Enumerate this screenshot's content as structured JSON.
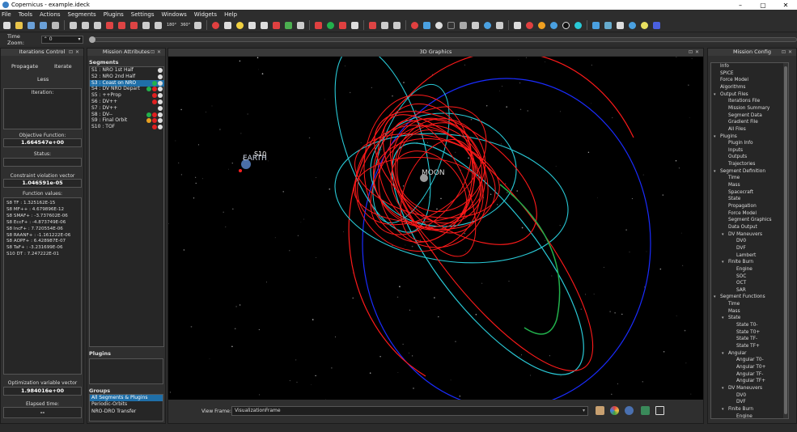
{
  "window": {
    "title": "Copernicus - example.ideck",
    "min": "–",
    "max": "▢",
    "close": "✕"
  },
  "menu": [
    "File",
    "Tools",
    "Actions",
    "Segments",
    "Plugins",
    "Settings",
    "Windows",
    "Widgets",
    "Help"
  ],
  "toolbar": {
    "label_180": "180°",
    "label_360": "360°"
  },
  "time_zoom": {
    "label": "Time Zoom:",
    "value": "0"
  },
  "iterations": {
    "title": "Iterations Control",
    "propagate": "Propagate",
    "iterate": "Iterate",
    "less": "Less",
    "iteration_label": "Iteration:",
    "objective_label": "Objective Function:",
    "objective_value": "1.664547e+00",
    "status_label": "Status:",
    "constraint_label": "Constraint violation vector norm:",
    "constraint_value": "1.046591e-05",
    "function_values_label": "Function values:",
    "function_values": [
      "S8 TF : 1.325162E-15",
      "S8 MF++ : 4.679896E-12",
      "S8 SMAF+ : -3.737602E-06",
      "S8 EccF+ : -4.873749E-06",
      "S8 IncF+ : 7.720554E-06",
      "S8 RAANF+ : -1.161222E-06",
      "S8 AOPF+ : 6.428987E-07",
      "S8 TaF+ : -3.231699E-06",
      "S10 DT : 7.247222E-01"
    ],
    "optvar_label": "Optimization variable vector norm:",
    "optvar_value": "1.984016e+00",
    "elapsed_label": "Elapsed time:",
    "elapsed_value": "--"
  },
  "mission_attributes": {
    "title": "Mission Attributes",
    "segments_label": "Segments",
    "segments": [
      {
        "label": "S1 : NRO 1st Half",
        "icons": [
          "#dddddd"
        ]
      },
      {
        "label": "S2 : NRO 2nd Half",
        "icons": [
          "#dddddd"
        ]
      },
      {
        "label": "S3 : Coast on NRO",
        "icons": [
          "#22b14c",
          "#dddddd"
        ]
      },
      {
        "label": "S4 : DV NRO Depart",
        "icons": [
          "#22b14c",
          "#e02020",
          "#dddddd"
        ]
      },
      {
        "label": "S5 : ++Prop",
        "icons": [
          "#e02020",
          "#dddddd"
        ]
      },
      {
        "label": "S6 : DV++",
        "icons": [
          "#e02020",
          "#dddddd"
        ]
      },
      {
        "label": "S7 : DV++",
        "icons": [
          "#dddddd"
        ]
      },
      {
        "label": "S8 : DV--",
        "icons": [
          "#22b14c",
          "#e02020",
          "#dddddd"
        ]
      },
      {
        "label": "S9 : Final Orbit",
        "icons": [
          "#e8a020",
          "#e02020",
          "#dddddd"
        ]
      },
      {
        "label": "S10 : TOF",
        "icons": [
          "#e02020",
          "#dddddd"
        ]
      }
    ],
    "plugins_label": "Plugins",
    "groups_label": "Groups",
    "groups": [
      "All Segments & Plugins",
      "Periodic-Orbits",
      "NRO-DRO Transfer"
    ]
  },
  "graphics": {
    "title": "3D Graphics",
    "earth_label": "EARTH",
    "moon_label": "MOON",
    "s10_label": "S10",
    "view_frame_label": "View Frame:",
    "view_frame_value": "VisualizationFrame"
  },
  "mission_config": {
    "title": "Mission Config",
    "items": [
      {
        "label": "Info",
        "level": 0,
        "arrow": ""
      },
      {
        "label": "SPICE",
        "level": 0,
        "arrow": ""
      },
      {
        "label": "Force Model",
        "level": 0,
        "arrow": ""
      },
      {
        "label": "Algorithms",
        "level": 0,
        "arrow": ""
      },
      {
        "label": "Output Files",
        "level": 0,
        "arrow": "▾"
      },
      {
        "label": "Iterations File",
        "level": 1,
        "arrow": ""
      },
      {
        "label": "Mission Summary",
        "level": 1,
        "arrow": ""
      },
      {
        "label": "Segment Data",
        "level": 1,
        "arrow": ""
      },
      {
        "label": "Gradient File",
        "level": 1,
        "arrow": ""
      },
      {
        "label": "All Files",
        "level": 1,
        "arrow": ""
      },
      {
        "label": "Plugins",
        "level": 0,
        "arrow": "▾"
      },
      {
        "label": "Plugin Info",
        "level": 1,
        "arrow": ""
      },
      {
        "label": "Inputs",
        "level": 1,
        "arrow": ""
      },
      {
        "label": "Outputs",
        "level": 1,
        "arrow": ""
      },
      {
        "label": "Trajectories",
        "level": 1,
        "arrow": ""
      },
      {
        "label": "Segment Definition",
        "level": 0,
        "arrow": "▾"
      },
      {
        "label": "Time",
        "level": 1,
        "arrow": ""
      },
      {
        "label": "Mass",
        "level": 1,
        "arrow": ""
      },
      {
        "label": "Spacecraft",
        "level": 1,
        "arrow": ""
      },
      {
        "label": "State",
        "level": 1,
        "arrow": ""
      },
      {
        "label": "Propagation",
        "level": 1,
        "arrow": ""
      },
      {
        "label": "Force Model",
        "level": 1,
        "arrow": ""
      },
      {
        "label": "Segment Graphics",
        "level": 1,
        "arrow": ""
      },
      {
        "label": "Data Output",
        "level": 1,
        "arrow": ""
      },
      {
        "label": "DV Maneuvers",
        "level": 1,
        "arrow": "▾"
      },
      {
        "label": "DV0",
        "level": 2,
        "arrow": ""
      },
      {
        "label": "DVF",
        "level": 2,
        "arrow": ""
      },
      {
        "label": "Lambert",
        "level": 2,
        "arrow": ""
      },
      {
        "label": "Finite Burn",
        "level": 1,
        "arrow": "▾"
      },
      {
        "label": "Engine",
        "level": 2,
        "arrow": ""
      },
      {
        "label": "SOC",
        "level": 2,
        "arrow": ""
      },
      {
        "label": "OCT",
        "level": 2,
        "arrow": ""
      },
      {
        "label": "SAR",
        "level": 2,
        "arrow": ""
      },
      {
        "label": "Segment Functions",
        "level": 0,
        "arrow": "▾"
      },
      {
        "label": "Time",
        "level": 1,
        "arrow": ""
      },
      {
        "label": "Mass",
        "level": 1,
        "arrow": ""
      },
      {
        "label": "State",
        "level": 1,
        "arrow": "▾"
      },
      {
        "label": "State T0-",
        "level": 2,
        "arrow": ""
      },
      {
        "label": "State T0+",
        "level": 2,
        "arrow": ""
      },
      {
        "label": "State TF-",
        "level": 2,
        "arrow": ""
      },
      {
        "label": "State TF+",
        "level": 2,
        "arrow": ""
      },
      {
        "label": "Angular",
        "level": 1,
        "arrow": "▾"
      },
      {
        "label": "Angular T0-",
        "level": 2,
        "arrow": ""
      },
      {
        "label": "Angular T0+",
        "level": 2,
        "arrow": ""
      },
      {
        "label": "Angular TF-",
        "level": 2,
        "arrow": ""
      },
      {
        "label": "Angular TF+",
        "level": 2,
        "arrow": ""
      },
      {
        "label": "DV Maneuvers",
        "level": 1,
        "arrow": "▾"
      },
      {
        "label": "DV0",
        "level": 2,
        "arrow": ""
      },
      {
        "label": "DVF",
        "level": 2,
        "arrow": ""
      },
      {
        "label": "Finite Burn",
        "level": 1,
        "arrow": "▾"
      },
      {
        "label": "Engine",
        "level": 2,
        "arrow": ""
      }
    ]
  },
  "colors": {
    "selection": "#1f6fa8",
    "orbit_red": "#ff1a1a",
    "orbit_cyan": "#29c9d6",
    "orbit_blue": "#1a2cff",
    "orbit_green": "#22b14c"
  }
}
